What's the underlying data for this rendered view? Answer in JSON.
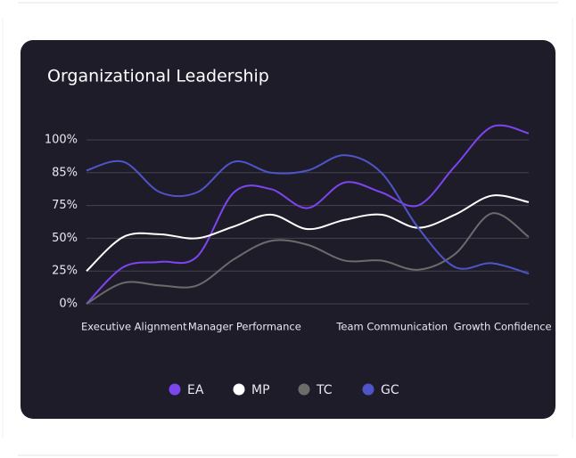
{
  "chart_data": {
    "type": "line",
    "title": "Organizational Leadership",
    "categories": [
      null,
      "Executive Alignment",
      null,
      null,
      "Manager Performance",
      null,
      null,
      null,
      "Team Communication",
      null,
      null,
      "Growth Confidence",
      null
    ],
    "series": [
      {
        "name": "EA",
        "color": "#7b45f0",
        "values": [
          0,
          28,
          32,
          36,
          79,
          80,
          73,
          82,
          79,
          75,
          88,
          106,
          103
        ]
      },
      {
        "name": "MP",
        "color": "#ffffff",
        "values": [
          25,
          51,
          53,
          50,
          59,
          68,
          57,
          64,
          68,
          58,
          68,
          78,
          76
        ]
      },
      {
        "name": "TC",
        "color": "#6b6b6b",
        "values": [
          0,
          16,
          14,
          14,
          34,
          48,
          45,
          33,
          33,
          26,
          38,
          69,
          51
        ]
      },
      {
        "name": "GC",
        "color": "#4f55c9",
        "values": [
          86,
          90,
          79,
          79,
          90,
          85,
          86,
          93,
          85,
          58,
          28,
          31,
          23
        ]
      }
    ],
    "ylim": [
      0,
      100
    ],
    "yticks": [
      {
        "value": 0,
        "label": "0%"
      },
      {
        "value": 25,
        "label": "25%"
      },
      {
        "value": 50,
        "label": "50%"
      },
      {
        "value": 75,
        "label": "75%"
      },
      {
        "value": 85,
        "label": "85%"
      },
      {
        "value": 100,
        "label": "100%"
      }
    ],
    "y_scale": "evenly-spaced-ticks",
    "grid": true,
    "legend": "bottom"
  }
}
